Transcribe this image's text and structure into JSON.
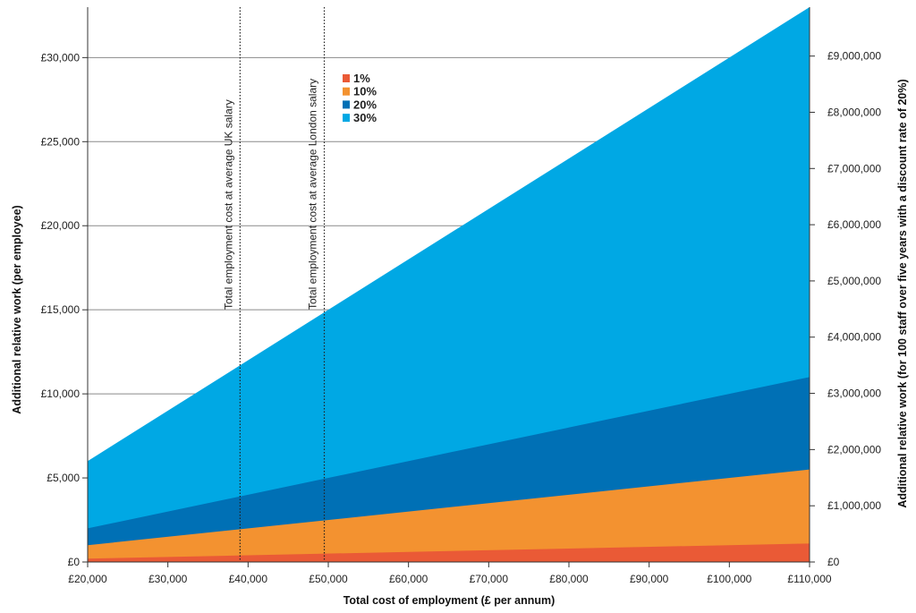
{
  "chart_data": {
    "type": "area",
    "title": "",
    "xlabel": "Total cost of employment (£ per annum)",
    "ylabel": "Additional relative work (per employee)",
    "y2label": "Additional relative work (for 100 staff over five years with a discount rate of 20%)",
    "xlim": [
      20000,
      110000
    ],
    "ylim": [
      0,
      33000
    ],
    "y2lim": [
      0,
      9870000
    ],
    "grid": "horizontal",
    "legend_position": "top-left of plot",
    "x_ticks": [
      "£20,000",
      "£30,000",
      "£40,000",
      "£50,000",
      "£60,000",
      "£70,000",
      "£80,000",
      "£90,000",
      "£100,000",
      "£110,000"
    ],
    "y_ticks": [
      "£0",
      "£5,000",
      "£10,000",
      "£15,000",
      "£20,000",
      "£25,000",
      "£30,000"
    ],
    "y2_ticks": [
      "£0",
      "£1,000,000",
      "£2,000,000",
      "£3,000,000",
      "£4,000,000",
      "£5,000,000",
      "£6,000,000",
      "£7,000,000",
      "£8,000,000",
      "£9,000,000"
    ],
    "x": [
      20000,
      110000
    ],
    "series": [
      {
        "name": "30%",
        "color": "#00a8e4",
        "values": [
          6000,
          33000
        ]
      },
      {
        "name": "20%",
        "color": "#0070b5",
        "values": [
          2000,
          11000
        ]
      },
      {
        "name": "10%",
        "color": "#f39230",
        "values": [
          1000,
          5500
        ]
      },
      {
        "name": "1%",
        "color": "#ea5a36",
        "values": [
          200,
          1100
        ]
      }
    ],
    "annotations": [
      {
        "x": 39000,
        "text": "Total employment cost at average UK salary"
      },
      {
        "x": 49500,
        "text": "Total employment cost at average London salary"
      }
    ]
  }
}
